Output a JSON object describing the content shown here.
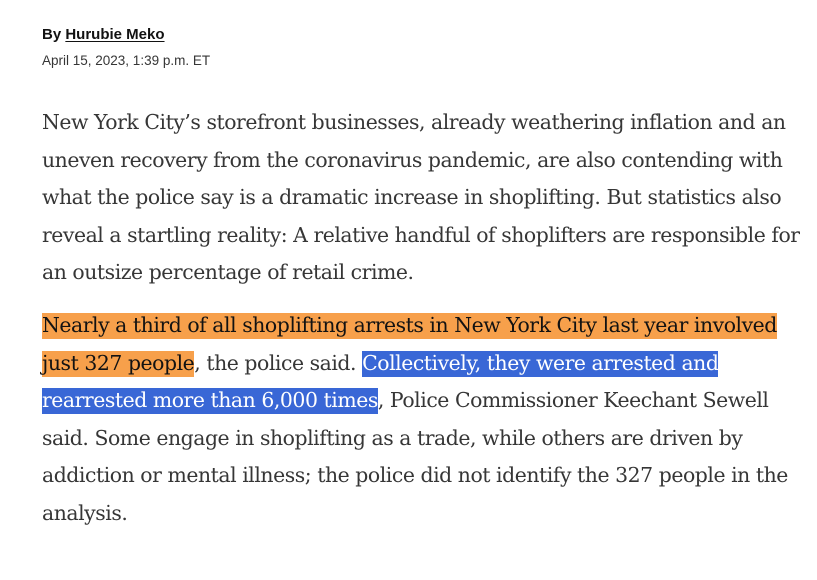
{
  "byline": {
    "prefix": "By ",
    "author": "Hurubie Meko"
  },
  "dateline": "April 15, 2023, 1:39 p.m. ET",
  "paragraphs": {
    "first": "New York City’s storefront businesses, already weathering inflation and an uneven recovery from the coronavirus pandemic, are also contending with what the police say is a dramatic increase in shoplifting. But statistics also reveal a startling reality: A relative handful of shoplifters are responsible for an outsize percentage of retail crime.",
    "second": {
      "highlight_orange": "Nearly a third of all shoplifting arrests in New York City last year involved just 327 people",
      "text_a": ", the police said. ",
      "highlight_blue": "Collectively, they were arrested and rearrested more than 6,000 times",
      "text_b": ", Police Commissioner Keechant Sewell said. Some engage in shoplifting as a trade, while others are driven by addiction or mental illness; the police did not identify the 327 people in the analysis."
    }
  },
  "colors": {
    "highlight_orange": "#f7a04b",
    "highlight_blue": "#3967d6"
  }
}
